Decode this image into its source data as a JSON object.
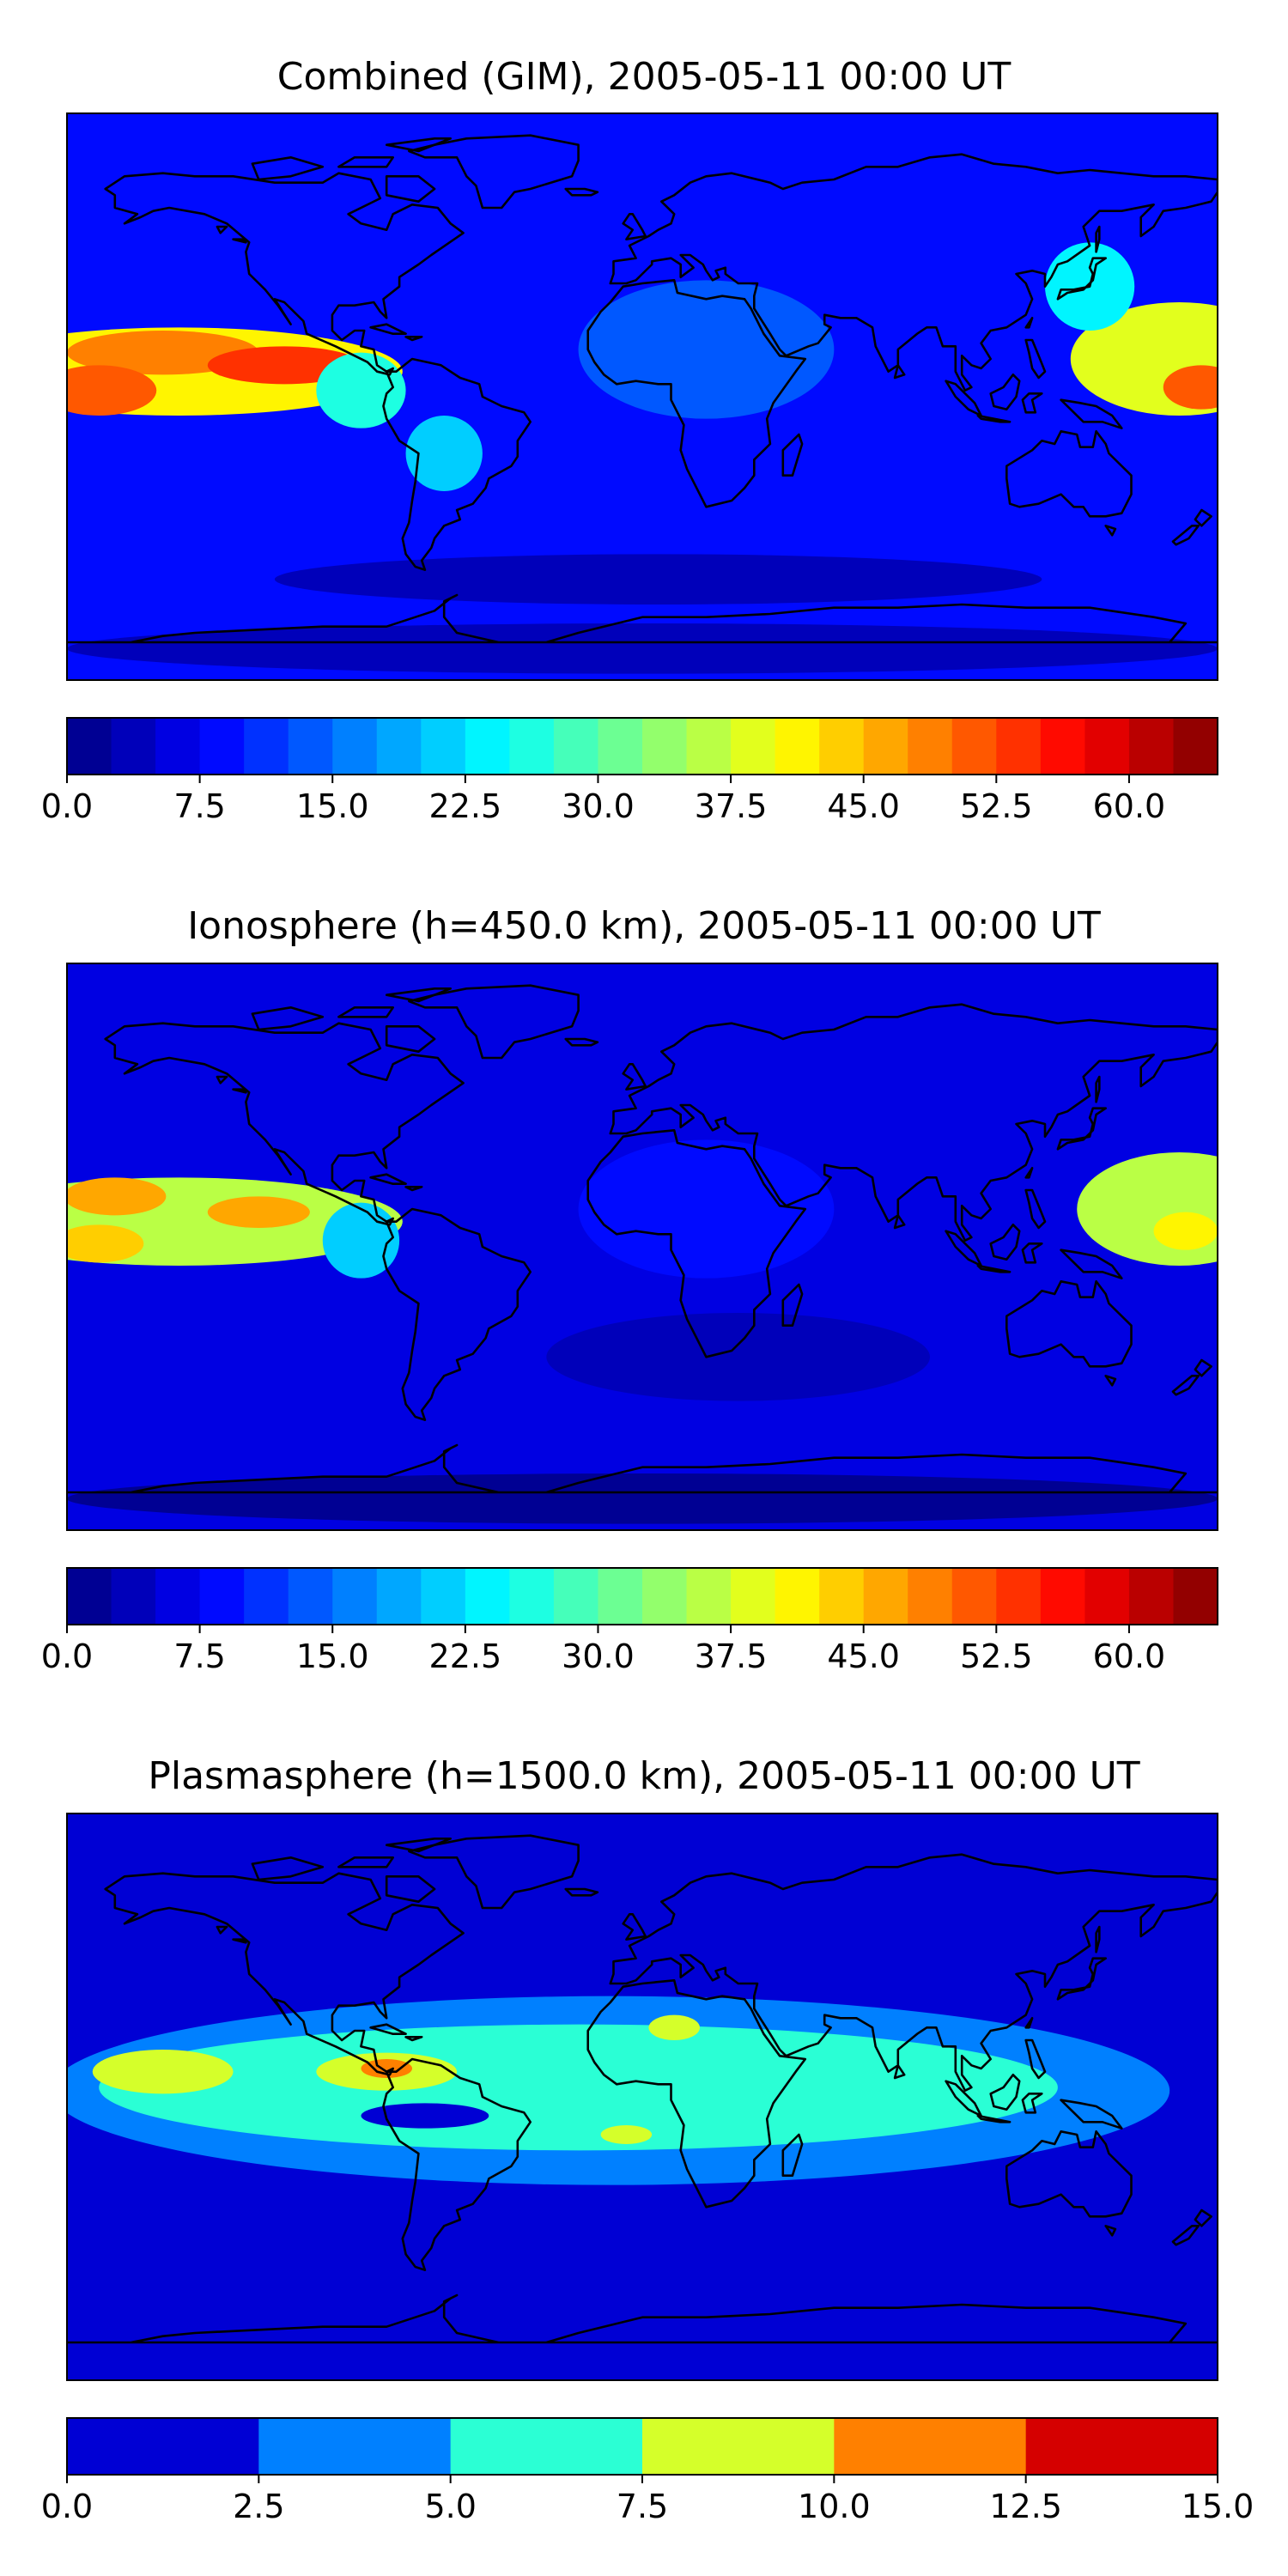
{
  "panels": [
    {
      "title": "Combined (GIM), 2005-05-11 00:00 UT",
      "colorbar": {
        "min": 0,
        "max": 65,
        "step": 2.5,
        "tick_labels": [
          "0.0",
          "7.5",
          "15.0",
          "22.5",
          "30.0",
          "37.5",
          "45.0",
          "52.5",
          "60.0"
        ],
        "tick_values": [
          0,
          7.5,
          15,
          22.5,
          30,
          37.5,
          45,
          52.5,
          60
        ]
      },
      "background_level": 8,
      "blobs": [
        {
          "lon": -145,
          "lat": 8,
          "rlon": 70,
          "rlat": 14,
          "v": 40
        },
        {
          "lon": -150,
          "lat": 14,
          "rlon": 30,
          "rlat": 7,
          "v": 49
        },
        {
          "lon": -170,
          "lat": 2,
          "rlon": 18,
          "rlat": 8,
          "v": 52
        },
        {
          "lon": -112,
          "lat": 10,
          "rlon": 24,
          "rlat": 6,
          "v": 53
        },
        {
          "lon": -88,
          "lat": 2,
          "rlon": 14,
          "rlat": 12,
          "v": 26
        },
        {
          "lon": -62,
          "lat": -18,
          "rlon": 12,
          "rlat": 12,
          "v": 22
        },
        {
          "lon": 168,
          "lat": 12,
          "rlon": 34,
          "rlat": 18,
          "v": 38
        },
        {
          "lon": 175,
          "lat": 3,
          "rlon": 12,
          "rlat": 7,
          "v": 52
        },
        {
          "lon": 140,
          "lat": 35,
          "rlon": 14,
          "rlat": 14,
          "v": 23
        },
        {
          "lon": 20,
          "lat": 15,
          "rlon": 40,
          "rlat": 22,
          "v": 14
        },
        {
          "lon": 5,
          "lat": -58,
          "rlon": 120,
          "rlat": 8,
          "v": 4
        },
        {
          "lon": 0,
          "lat": -80,
          "rlon": 180,
          "rlat": 8,
          "v": 3
        }
      ]
    },
    {
      "title": "Ionosphere  (h=450.0 km), 2005-05-11 00:00 UT",
      "colorbar": {
        "min": 0,
        "max": 65,
        "step": 2.5,
        "tick_labels": [
          "0.0",
          "7.5",
          "15.0",
          "22.5",
          "30.0",
          "37.5",
          "45.0",
          "52.5",
          "60.0"
        ],
        "tick_values": [
          0,
          7.5,
          15,
          22.5,
          30,
          37.5,
          45,
          52.5,
          60
        ]
      },
      "background_level": 6,
      "blobs": [
        {
          "lon": -145,
          "lat": 8,
          "rlon": 70,
          "rlat": 14,
          "v": 36
        },
        {
          "lon": -165,
          "lat": 16,
          "rlon": 16,
          "rlat": 6,
          "v": 45
        },
        {
          "lon": -120,
          "lat": 11,
          "rlon": 16,
          "rlat": 5,
          "v": 45
        },
        {
          "lon": -170,
          "lat": 1,
          "rlon": 14,
          "rlat": 6,
          "v": 43
        },
        {
          "lon": -88,
          "lat": 2,
          "rlon": 12,
          "rlat": 12,
          "v": 22
        },
        {
          "lon": 168,
          "lat": 12,
          "rlon": 32,
          "rlat": 18,
          "v": 35
        },
        {
          "lon": 170,
          "lat": 5,
          "rlon": 10,
          "rlat": 6,
          "v": 42
        },
        {
          "lon": 20,
          "lat": 12,
          "rlon": 40,
          "rlat": 22,
          "v": 8
        },
        {
          "lon": 30,
          "lat": -35,
          "rlon": 60,
          "rlat": 14,
          "v": 3
        },
        {
          "lon": 0,
          "lat": -80,
          "rlon": 180,
          "rlat": 8,
          "v": 2
        }
      ]
    },
    {
      "title": "Plasmasphere (h=1500.0 km), 2005-05-11 00:00 UT",
      "colorbar": {
        "min": 0,
        "max": 15,
        "step": 2.5,
        "tick_labels": [
          "0.0",
          "2.5",
          "5.0",
          "7.5",
          "10.0",
          "12.5",
          "15.0"
        ],
        "tick_values": [
          0,
          2.5,
          5,
          7.5,
          10,
          12.5,
          15
        ]
      },
      "background_level": 1.5,
      "blobs": [
        {
          "lon": -10,
          "lat": 2,
          "rlon": 175,
          "rlat": 30,
          "v": 4
        },
        {
          "lon": -20,
          "lat": 3,
          "rlon": 150,
          "rlat": 20,
          "v": 6.5
        },
        {
          "lon": -150,
          "lat": 8,
          "rlon": 22,
          "rlat": 7,
          "v": 8.5
        },
        {
          "lon": -80,
          "lat": 8,
          "rlon": 22,
          "rlat": 6,
          "v": 8.5
        },
        {
          "lon": -80,
          "lat": 9,
          "rlon": 8,
          "rlat": 3,
          "v": 11
        },
        {
          "lon": 10,
          "lat": 22,
          "rlon": 8,
          "rlat": 4,
          "v": 8.5
        },
        {
          "lon": -5,
          "lat": -12,
          "rlon": 8,
          "rlat": 3,
          "v": 8.5
        },
        {
          "lon": -68,
          "lat": -6,
          "rlon": 20,
          "rlat": 4,
          "v": 1
        }
      ]
    }
  ],
  "colormap": "jet",
  "coastline_color": "#000000"
}
